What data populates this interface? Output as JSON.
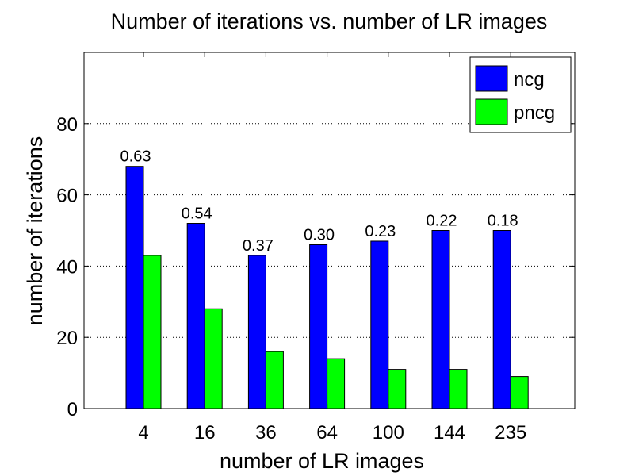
{
  "chart_data": {
    "type": "bar",
    "title": "Number of iterations vs. number of LR images",
    "xlabel": "number of LR images",
    "ylabel": "number of iterations",
    "categories": [
      "4",
      "16",
      "36",
      "64",
      "100",
      "144",
      "235"
    ],
    "series": [
      {
        "name": "ncg",
        "color": "#0000ff",
        "values": [
          68,
          52,
          43,
          46,
          47,
          50,
          50
        ]
      },
      {
        "name": "pncg",
        "color": "#00ff00",
        "values": [
          43,
          28,
          16,
          14,
          11,
          11,
          9
        ]
      }
    ],
    "data_labels": [
      "0.63",
      "0.54",
      "0.37",
      "0.30",
      "0.23",
      "0.22",
      "0.18"
    ],
    "ylim": [
      0,
      100
    ],
    "yticks": [
      0,
      20,
      40,
      60,
      80
    ],
    "grid": "horizontal-dotted",
    "legend_position": "top-right"
  }
}
